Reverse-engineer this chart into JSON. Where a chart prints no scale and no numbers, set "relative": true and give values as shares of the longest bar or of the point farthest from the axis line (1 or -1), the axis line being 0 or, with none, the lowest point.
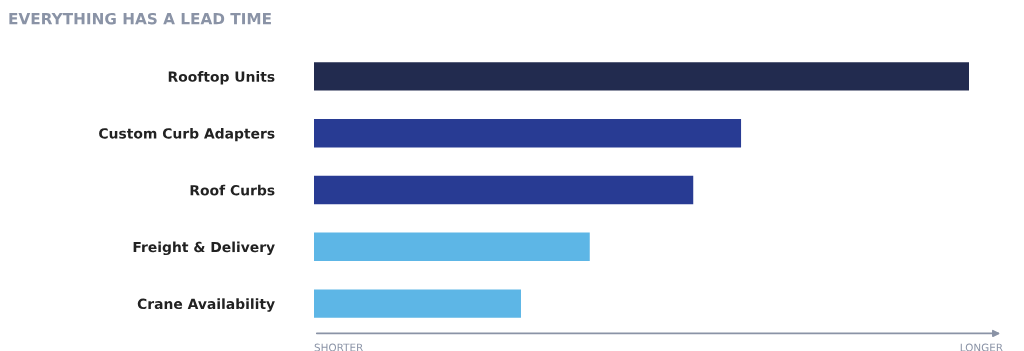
{
  "chart_data": {
    "type": "bar",
    "orientation": "horizontal",
    "relative": true,
    "title": "EVERYTHING HAS A LEAD TIME",
    "categories": [
      "Rooftop Units",
      "Custom Curb Adapters",
      "Roof Curbs",
      "Freight & Delivery",
      "Crane Availability"
    ],
    "values": [
      1,
      0.652,
      0.579,
      0.421,
      0.316
    ],
    "colors": [
      "#222b4f",
      "#283b93",
      "#283b93",
      "#5db6e6",
      "#5db6e6"
    ],
    "annotations": [
      "SHORTER",
      "LONGER"
    ]
  }
}
